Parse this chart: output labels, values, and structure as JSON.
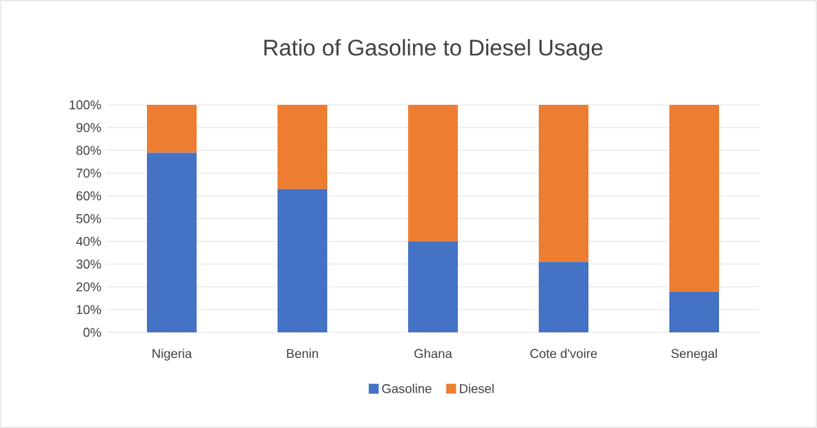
{
  "chart_data": {
    "type": "bar",
    "title": "Ratio of Gasoline to Diesel Usage",
    "stacked": true,
    "categories": [
      "Nigeria",
      "Benin",
      "Ghana",
      "Cote d'voire",
      "Senegal"
    ],
    "series": [
      {
        "name": "Gasoline",
        "color": "#4472c4",
        "values": [
          79,
          63,
          40,
          31,
          18
        ]
      },
      {
        "name": "Diesel",
        "color": "#ed7d31",
        "values": [
          21,
          37,
          60,
          69,
          82
        ]
      }
    ],
    "ylim": [
      0,
      100
    ],
    "yticks": [
      {
        "value": 0,
        "label": "0%"
      },
      {
        "value": 10,
        "label": "10%"
      },
      {
        "value": 20,
        "label": "20%"
      },
      {
        "value": 30,
        "label": "30%"
      },
      {
        "value": 40,
        "label": "40%"
      },
      {
        "value": 50,
        "label": "50%"
      },
      {
        "value": 60,
        "label": "60%"
      },
      {
        "value": 70,
        "label": "70%"
      },
      {
        "value": 80,
        "label": "80%"
      },
      {
        "value": 90,
        "label": "90%"
      },
      {
        "value": 100,
        "label": "100%"
      }
    ],
    "grid": "y",
    "legend": "bottom"
  }
}
